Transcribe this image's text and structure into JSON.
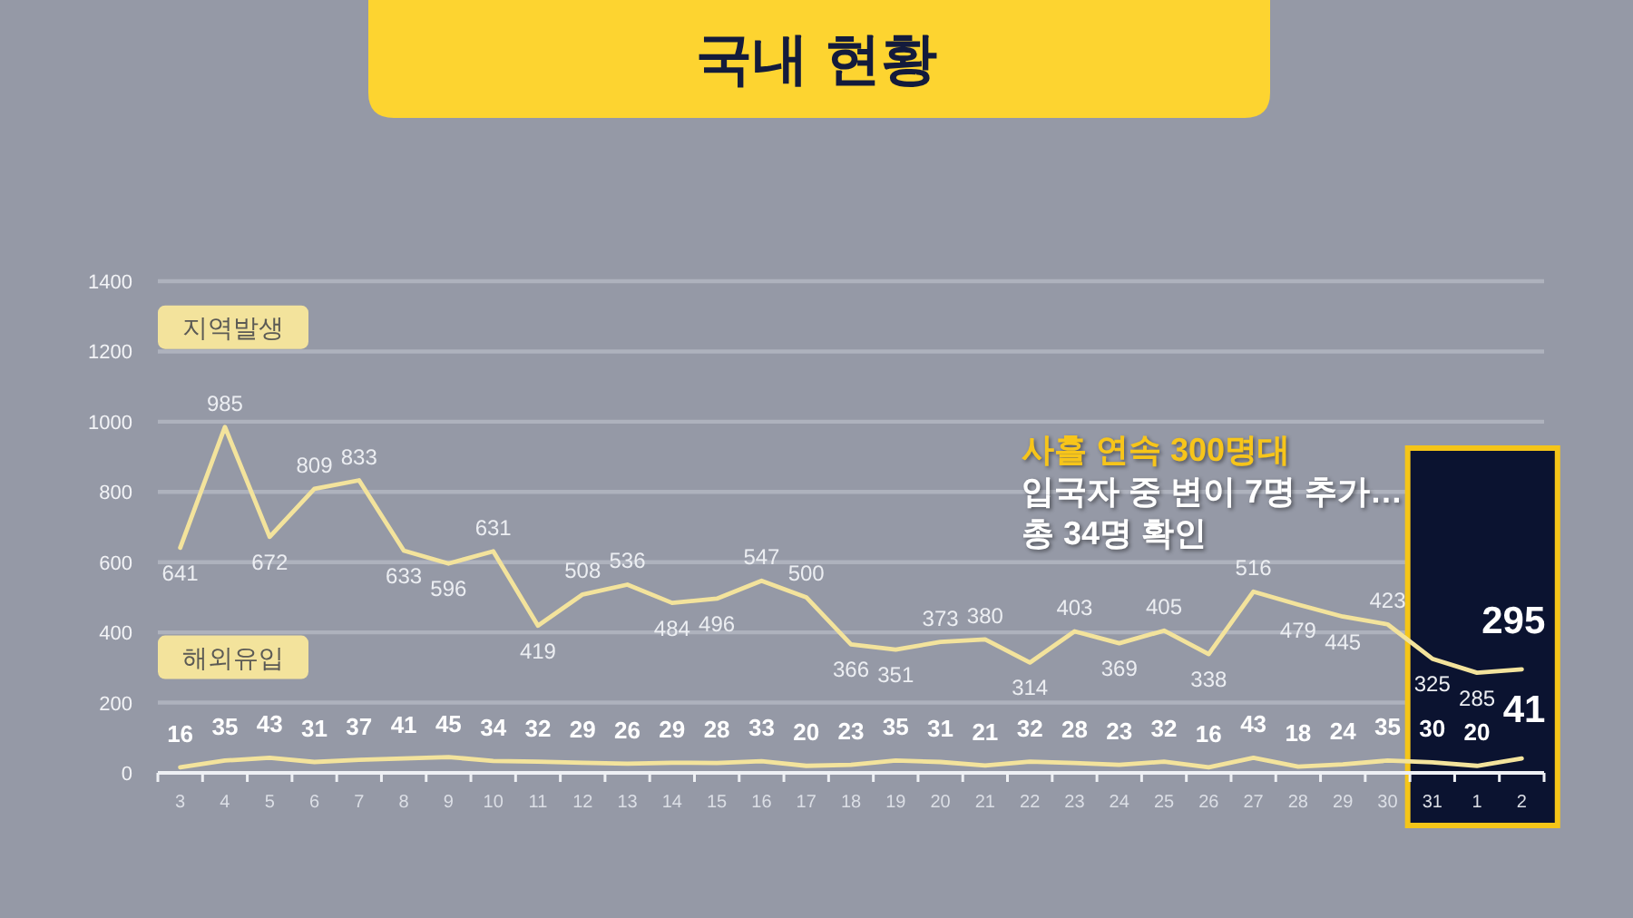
{
  "chart_data": {
    "type": "line",
    "title": "국내 현황",
    "categories": [
      "3",
      "4",
      "5",
      "6",
      "7",
      "8",
      "9",
      "10",
      "11",
      "12",
      "13",
      "14",
      "15",
      "16",
      "17",
      "18",
      "19",
      "20",
      "21",
      "22",
      "23",
      "24",
      "25",
      "26",
      "27",
      "28",
      "29",
      "30",
      "31",
      "1",
      "2"
    ],
    "series": [
      {
        "name": "지역발생",
        "color": "#f3e39c",
        "values": [
          641,
          985,
          672,
          809,
          833,
          633,
          596,
          631,
          419,
          508,
          536,
          484,
          496,
          547,
          500,
          366,
          351,
          373,
          380,
          314,
          403,
          369,
          405,
          338,
          516,
          479,
          445,
          423,
          325,
          285,
          295
        ]
      },
      {
        "name": "해외유입",
        "color": "#f3e39c",
        "values": [
          16,
          35,
          43,
          31,
          37,
          41,
          45,
          34,
          32,
          29,
          26,
          29,
          28,
          33,
          20,
          23,
          35,
          31,
          21,
          32,
          28,
          23,
          32,
          16,
          43,
          18,
          24,
          35,
          30,
          20,
          41
        ]
      }
    ],
    "ylim": [
      0,
      1400
    ],
    "yticks": [
      0,
      200,
      400,
      600,
      800,
      1000,
      1200,
      1400
    ],
    "grid": "y",
    "line_style": "solid",
    "data_labels": true,
    "bands": [
      {
        "axis": "x",
        "from": "31",
        "to": "2",
        "color": "#0b1330"
      }
    ],
    "annotations": [
      "사흘 연속 300명대",
      "입국자 중 변이 7명 추가…",
      "총 34명 확인"
    ]
  }
}
